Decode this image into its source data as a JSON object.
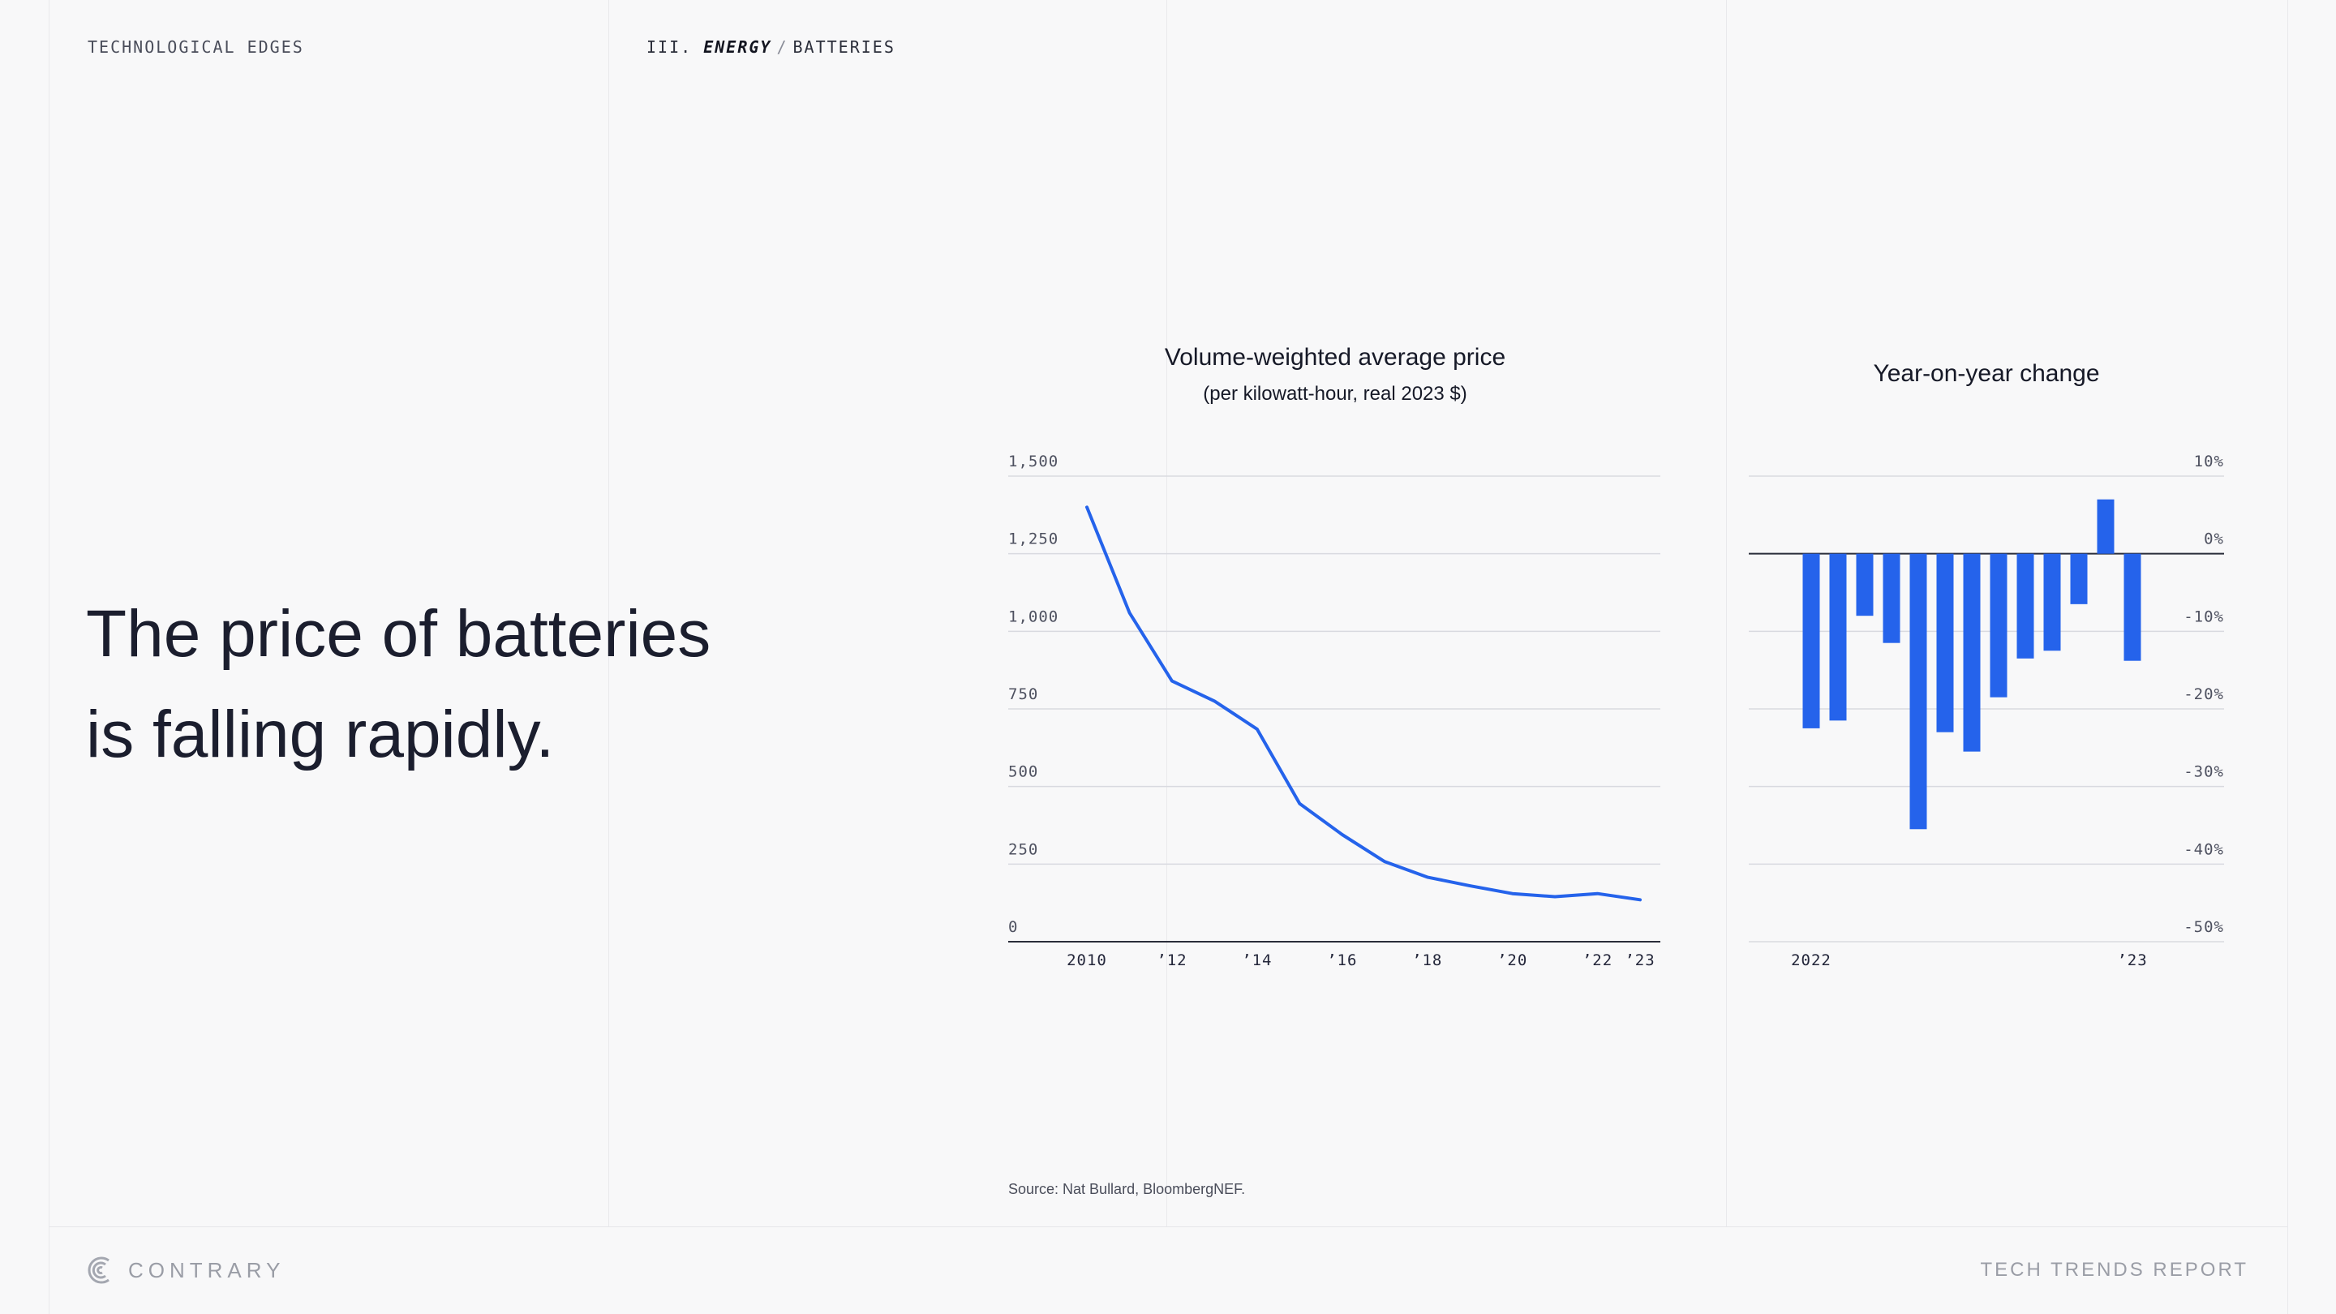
{
  "header": {
    "section": "TECHNOLOGICAL EDGES",
    "crumb_prefix": "III.",
    "crumb_topic": "ENERGY",
    "crumb_sep": "/",
    "crumb_sub": "BATTERIES"
  },
  "headline": {
    "line1": "The price of batteries",
    "line2": "is falling rapidly."
  },
  "source": "Source: Nat Bullard, BloombergNEF.",
  "footer": {
    "brand": "CONTRARY",
    "report": "TECH TRENDS REPORT"
  },
  "colors": {
    "accent": "#2563eb",
    "background": "#f8f8f9",
    "grid": "#d9dae0"
  },
  "chart_data": [
    {
      "type": "line",
      "title": "Volume-weighted average price",
      "subtitle": "(per kilowatt-hour, real 2023 $)",
      "x": [
        2010,
        2011,
        2012,
        2013,
        2014,
        2015,
        2016,
        2017,
        2018,
        2019,
        2020,
        2021,
        2022,
        2023
      ],
      "x_tick_labels": [
        "2010",
        "’12",
        "’14",
        "’16",
        "’18",
        "’20",
        "’22",
        "’23"
      ],
      "x_tick_values": [
        2010,
        2012,
        2014,
        2016,
        2018,
        2020,
        2022,
        2023
      ],
      "series": [
        {
          "values": [
            1400,
            1060,
            840,
            775,
            685,
            445,
            345,
            258,
            208,
            180,
            155,
            145,
            155,
            135
          ]
        }
      ],
      "y_ticks": [
        0,
        250,
        500,
        750,
        1000,
        1250,
        1500
      ],
      "y_tick_labels": [
        "0",
        "250",
        "500",
        "750",
        "1,000",
        "1,250",
        "1,500"
      ],
      "ylim": [
        0,
        1500
      ],
      "grid": true
    },
    {
      "type": "bar",
      "title": "Year-on-year change",
      "categories": [
        "2022",
        "",
        "",
        "",
        "",
        "",
        "",
        "",
        "",
        "",
        "",
        "",
        "’23"
      ],
      "x_tick_labels": [
        "2022",
        "’23"
      ],
      "values": [
        -22.5,
        -21.5,
        -8,
        -11.5,
        -35.5,
        -23,
        -25.5,
        -18.5,
        -13.5,
        -12.5,
        -6.5,
        7,
        -13.8
      ],
      "y_ticks": [
        10,
        0,
        -10,
        -20,
        -30,
        -40,
        -50
      ],
      "y_tick_labels": [
        "10%",
        "0%",
        "-10%",
        "-20%",
        "-30%",
        "-40%",
        "-50%"
      ],
      "ylim": [
        -50,
        10
      ],
      "grid": true
    }
  ]
}
